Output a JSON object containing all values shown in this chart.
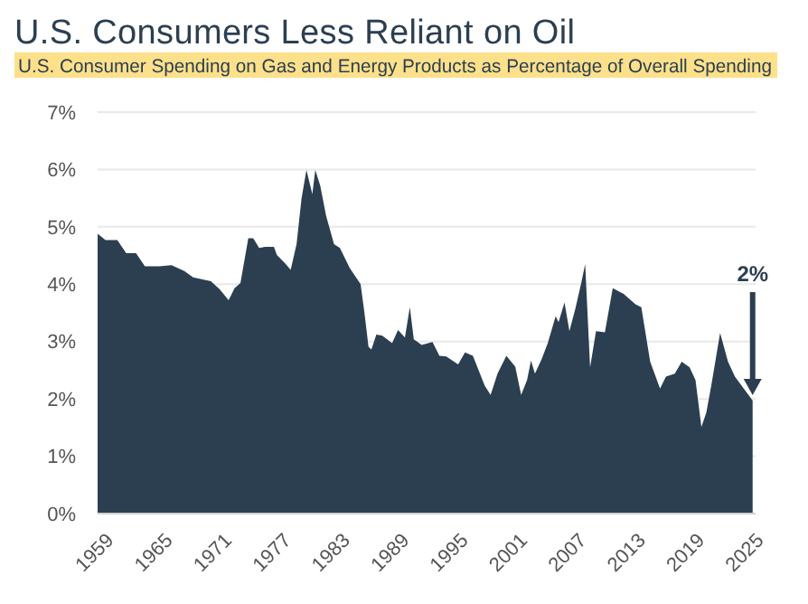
{
  "chart_data": {
    "type": "area",
    "title": "U.S. Consumers Less Reliant on Oil",
    "subtitle": "U.S. Consumer Spending on Gas and Energy Products as Percentage of Overall Spending",
    "xlim": [
      1959,
      2025.8
    ],
    "xticks": [
      1959,
      1965,
      1971,
      1977,
      1983,
      1989,
      1995,
      2001,
      2007,
      2013,
      2019,
      2025
    ],
    "ylim": [
      0,
      7
    ],
    "yticks": [
      {
        "value": 0,
        "label": "0%"
      },
      {
        "value": 1,
        "label": "1%"
      },
      {
        "value": 2,
        "label": "2%"
      },
      {
        "value": 3,
        "label": "3%"
      },
      {
        "value": 4,
        "label": "4%"
      },
      {
        "value": 5,
        "label": "5%"
      },
      {
        "value": 6,
        "label": "6%"
      },
      {
        "value": 7,
        "label": "7%"
      }
    ],
    "grid": "y",
    "color": "#2b3f51",
    "x": [
      1959.0,
      1959.8,
      1961.0,
      1961.9,
      1962.9,
      1963.8,
      1965.3,
      1966.5,
      1967.8,
      1968.7,
      1970.5,
      1971.4,
      1972.3,
      1972.9,
      1973.5,
      1974.3,
      1974.8,
      1975.4,
      1976.0,
      1976.9,
      1977.2,
      1978.1,
      1978.6,
      1979.2,
      1979.7,
      1980.2,
      1980.8,
      1981.1,
      1981.6,
      1982.2,
      1983.0,
      1983.6,
      1984.6,
      1985.7,
      1986.1,
      1986.5,
      1986.8,
      1987.3,
      1987.9,
      1988.9,
      1989.5,
      1990.2,
      1990.7,
      1991.1,
      1991.9,
      1993.0,
      1993.7,
      1994.4,
      1995.6,
      1996.3,
      1997.1,
      1998.3,
      1998.9,
      1999.6,
      2000.5,
      2001.4,
      2002.0,
      2002.6,
      2003.0,
      2003.4,
      2004.1,
      2004.7,
      2005.5,
      2005.8,
      2006.4,
      2006.9,
      2007.5,
      2008.1,
      2008.5,
      2009.0,
      2009.6,
      2010.5,
      2011.3,
      2012.4,
      2013.6,
      2014.2,
      2015.1,
      2016.1,
      2016.7,
      2017.6,
      2018.3,
      2019.1,
      2019.7,
      2020.3,
      2020.8,
      2021.3,
      2022.2,
      2023.0,
      2023.7,
      2024.6,
      2025.5
    ],
    "values": [
      4.88,
      4.77,
      4.77,
      4.54,
      4.54,
      4.31,
      4.31,
      4.33,
      4.23,
      4.12,
      4.05,
      3.91,
      3.72,
      3.93,
      4.02,
      4.8,
      4.8,
      4.63,
      4.65,
      4.65,
      4.51,
      4.35,
      4.25,
      4.7,
      5.49,
      5.99,
      5.57,
      5.99,
      5.72,
      5.19,
      4.7,
      4.63,
      4.28,
      4.0,
      3.49,
      2.91,
      2.86,
      3.12,
      3.1,
      2.97,
      3.2,
      3.07,
      3.6,
      3.04,
      2.94,
      2.99,
      2.75,
      2.74,
      2.6,
      2.81,
      2.75,
      2.23,
      2.07,
      2.44,
      2.75,
      2.56,
      2.07,
      2.33,
      2.67,
      2.44,
      2.7,
      2.97,
      3.44,
      3.34,
      3.68,
      3.18,
      3.57,
      4.02,
      4.35,
      2.55,
      3.18,
      3.16,
      3.93,
      3.83,
      3.65,
      3.6,
      2.65,
      2.18,
      2.39,
      2.44,
      2.65,
      2.55,
      2.33,
      1.51,
      1.76,
      2.23,
      3.15,
      2.65,
      2.39,
      2.18,
      1.97
    ],
    "annotations": [
      "2%"
    ]
  }
}
